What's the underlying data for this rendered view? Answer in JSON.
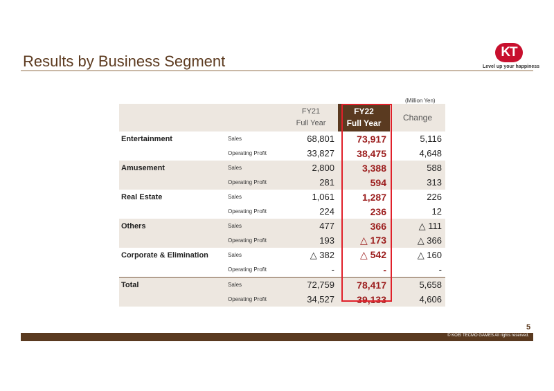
{
  "title": "Results by Business Segment",
  "logo": {
    "mark": "KT",
    "tagline": "Level up your happiness"
  },
  "unit": "(Million Yen)",
  "columns": {
    "fy21": {
      "line1": "FY21",
      "line2": "Full Year"
    },
    "fy22": {
      "line1": "FY22",
      "line2": "Full Year"
    },
    "change": "Change"
  },
  "segments": [
    {
      "name": "Entertainment",
      "rows": [
        {
          "label": "Sales",
          "fy21": "68,801",
          "fy22": "73,917",
          "change": "5,116"
        },
        {
          "label": "Operating Profit",
          "fy21": "33,827",
          "fy22": "38,475",
          "change": "4,648"
        }
      ]
    },
    {
      "name": "Amusement",
      "rows": [
        {
          "label": "Sales",
          "fy21": "2,800",
          "fy22": "3,388",
          "change": "588"
        },
        {
          "label": "Operating Profit",
          "fy21": "281",
          "fy22": "594",
          "change": "313"
        }
      ]
    },
    {
      "name": "Real Estate",
      "rows": [
        {
          "label": "Sales",
          "fy21": "1,061",
          "fy22": "1,287",
          "change": "226"
        },
        {
          "label": "Operating Profit",
          "fy21": "224",
          "fy22": "236",
          "change": "12"
        }
      ]
    },
    {
      "name": "Others",
      "rows": [
        {
          "label": "Sales",
          "fy21": "477",
          "fy22": "366",
          "change": "△ 111"
        },
        {
          "label": "Operating Profit",
          "fy21": "193",
          "fy22": "△ 173",
          "change": "△ 366"
        }
      ]
    },
    {
      "name": "Corporate & Elimination",
      "rows": [
        {
          "label": "Sales",
          "fy21": "△ 382",
          "fy22": "△ 542",
          "change": "△ 160"
        },
        {
          "label": "Operating Profit",
          "fy21": "-",
          "fy22": "-",
          "change": "-"
        }
      ]
    },
    {
      "name": "Total",
      "rows": [
        {
          "label": "Sales",
          "fy21": "72,759",
          "fy22": "78,417",
          "change": "5,658"
        },
        {
          "label": "Operating Profit",
          "fy21": "34,527",
          "fy22": "39,133",
          "change": "4,606"
        }
      ]
    }
  ],
  "page_number": "5",
  "copyright": "© KOEI TECMO GAMES All rights reserved."
}
